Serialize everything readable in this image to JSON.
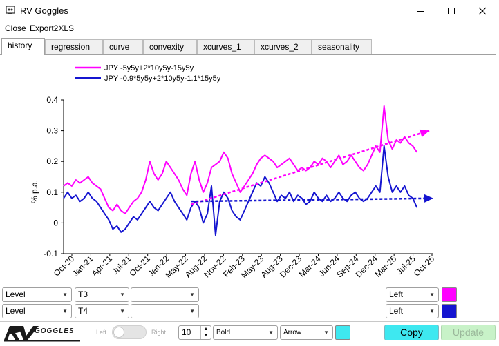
{
  "window": {
    "title": "RV Goggles"
  },
  "menu": {
    "close": "Close",
    "export": "Export2XLS"
  },
  "tabs": [
    {
      "label": "history",
      "active": true
    },
    {
      "label": "regression"
    },
    {
      "label": "curve"
    },
    {
      "label": "convexity"
    },
    {
      "label": "xcurves_1"
    },
    {
      "label": "xcurves_2"
    },
    {
      "label": "seasonality"
    }
  ],
  "chart_data": {
    "type": "line",
    "ylabel": "% p.a.",
    "ylim": [
      -0.1,
      0.4
    ],
    "yticks": [
      "0.4",
      "0.3",
      "0.2",
      "0.1",
      "0",
      "-0.1"
    ],
    "xticks": [
      "Oct-20",
      "Jan-21",
      "Apr-21",
      "Jul-21",
      "Oct-21",
      "Jan-22",
      "May-22",
      "Aug-22",
      "Nov-22",
      "Feb-23",
      "May-23",
      "Aug-23",
      "Dec-23",
      "Mar-24",
      "Jun-24",
      "Sep-24",
      "Dec-24",
      "Mar-25",
      "Jul-25",
      "Oct-25"
    ],
    "series": [
      {
        "name": "JPY -5y5y+2*10y5y-15y5y",
        "color": "#ff00ff",
        "points": [
          [
            0,
            0.12
          ],
          [
            0.5,
            0.13
          ],
          [
            1,
            0.12
          ],
          [
            1.5,
            0.14
          ],
          [
            2,
            0.13
          ],
          [
            2.5,
            0.14
          ],
          [
            3,
            0.15
          ],
          [
            3.5,
            0.13
          ],
          [
            4,
            0.12
          ],
          [
            4.5,
            0.11
          ],
          [
            5,
            0.08
          ],
          [
            5.5,
            0.05
          ],
          [
            6,
            0.04
          ],
          [
            6.5,
            0.06
          ],
          [
            7,
            0.04
          ],
          [
            7.5,
            0.03
          ],
          [
            8,
            0.05
          ],
          [
            8.5,
            0.07
          ],
          [
            9,
            0.08
          ],
          [
            9.5,
            0.1
          ],
          [
            10,
            0.14
          ],
          [
            10.5,
            0.2
          ],
          [
            11,
            0.16
          ],
          [
            11.5,
            0.14
          ],
          [
            12,
            0.16
          ],
          [
            12.5,
            0.2
          ],
          [
            13,
            0.18
          ],
          [
            13.5,
            0.16
          ],
          [
            14,
            0.14
          ],
          [
            14.5,
            0.11
          ],
          [
            15,
            0.09
          ],
          [
            15.5,
            0.16
          ],
          [
            16,
            0.2
          ],
          [
            16.5,
            0.14
          ],
          [
            17,
            0.1
          ],
          [
            17.5,
            0.13
          ],
          [
            18,
            0.18
          ],
          [
            18.5,
            0.19
          ],
          [
            19,
            0.2
          ],
          [
            19.5,
            0.23
          ],
          [
            20,
            0.21
          ],
          [
            20.5,
            0.16
          ],
          [
            21,
            0.13
          ],
          [
            21.5,
            0.1
          ],
          [
            22,
            0.12
          ],
          [
            22.5,
            0.14
          ],
          [
            23,
            0.16
          ],
          [
            23.5,
            0.19
          ],
          [
            24,
            0.21
          ],
          [
            24.5,
            0.22
          ],
          [
            25,
            0.21
          ],
          [
            25.5,
            0.2
          ],
          [
            26,
            0.18
          ],
          [
            26.5,
            0.19
          ],
          [
            27,
            0.2
          ],
          [
            27.5,
            0.21
          ],
          [
            28,
            0.19
          ],
          [
            28.5,
            0.17
          ],
          [
            29,
            0.18
          ],
          [
            29.5,
            0.17
          ],
          [
            30,
            0.18
          ],
          [
            30.5,
            0.2
          ],
          [
            31,
            0.19
          ],
          [
            31.5,
            0.21
          ],
          [
            32,
            0.2
          ],
          [
            32.5,
            0.18
          ],
          [
            33,
            0.2
          ],
          [
            33.5,
            0.22
          ],
          [
            34,
            0.19
          ],
          [
            34.5,
            0.2
          ],
          [
            35,
            0.22
          ],
          [
            35.5,
            0.2
          ],
          [
            36,
            0.18
          ],
          [
            36.5,
            0.17
          ],
          [
            37,
            0.19
          ],
          [
            37.5,
            0.22
          ],
          [
            38,
            0.25
          ],
          [
            38.5,
            0.23
          ],
          [
            39,
            0.38
          ],
          [
            39.5,
            0.27
          ],
          [
            40,
            0.24
          ],
          [
            40.5,
            0.27
          ],
          [
            41,
            0.26
          ],
          [
            41.5,
            0.28
          ],
          [
            42,
            0.26
          ],
          [
            42.5,
            0.25
          ],
          [
            43,
            0.23
          ]
        ]
      },
      {
        "name": "JPY -0.9*5y5y+2*10y5y-1.1*15y5y",
        "color": "#1515d0",
        "points": [
          [
            0,
            0.08
          ],
          [
            0.5,
            0.1
          ],
          [
            1,
            0.08
          ],
          [
            1.5,
            0.09
          ],
          [
            2,
            0.07
          ],
          [
            2.5,
            0.08
          ],
          [
            3,
            0.1
          ],
          [
            3.5,
            0.08
          ],
          [
            4,
            0.07
          ],
          [
            4.5,
            0.05
          ],
          [
            5,
            0.03
          ],
          [
            5.5,
            0.01
          ],
          [
            6,
            -0.02
          ],
          [
            6.5,
            -0.01
          ],
          [
            7,
            -0.03
          ],
          [
            7.5,
            -0.02
          ],
          [
            8,
            0.0
          ],
          [
            8.5,
            0.02
          ],
          [
            9,
            0.01
          ],
          [
            9.5,
            0.03
          ],
          [
            10,
            0.05
          ],
          [
            10.5,
            0.07
          ],
          [
            11,
            0.05
          ],
          [
            11.5,
            0.04
          ],
          [
            12,
            0.06
          ],
          [
            12.5,
            0.08
          ],
          [
            13,
            0.1
          ],
          [
            13.5,
            0.07
          ],
          [
            14,
            0.05
          ],
          [
            14.5,
            0.03
          ],
          [
            15,
            0.01
          ],
          [
            15.5,
            0.05
          ],
          [
            16,
            0.07
          ],
          [
            16.5,
            0.05
          ],
          [
            17,
            0.0
          ],
          [
            17.5,
            0.03
          ],
          [
            18,
            0.12
          ],
          [
            18.5,
            -0.04
          ],
          [
            19,
            0.07
          ],
          [
            19.5,
            0.1
          ],
          [
            20,
            0.08
          ],
          [
            20.5,
            0.04
          ],
          [
            21,
            0.02
          ],
          [
            21.5,
            0.01
          ],
          [
            22,
            0.04
          ],
          [
            22.5,
            0.07
          ],
          [
            23,
            0.1
          ],
          [
            23.5,
            0.13
          ],
          [
            24,
            0.12
          ],
          [
            24.5,
            0.15
          ],
          [
            25,
            0.13
          ],
          [
            25.5,
            0.1
          ],
          [
            26,
            0.07
          ],
          [
            26.5,
            0.09
          ],
          [
            27,
            0.08
          ],
          [
            27.5,
            0.1
          ],
          [
            28,
            0.07
          ],
          [
            28.5,
            0.09
          ],
          [
            29,
            0.08
          ],
          [
            29.5,
            0.06
          ],
          [
            30,
            0.07
          ],
          [
            30.5,
            0.1
          ],
          [
            31,
            0.08
          ],
          [
            31.5,
            0.07
          ],
          [
            32,
            0.09
          ],
          [
            32.5,
            0.07
          ],
          [
            33,
            0.08
          ],
          [
            33.5,
            0.1
          ],
          [
            34,
            0.08
          ],
          [
            34.5,
            0.07
          ],
          [
            35,
            0.09
          ],
          [
            35.5,
            0.1
          ],
          [
            36,
            0.08
          ],
          [
            36.5,
            0.07
          ],
          [
            37,
            0.08
          ],
          [
            37.5,
            0.1
          ],
          [
            38,
            0.12
          ],
          [
            38.5,
            0.1
          ],
          [
            39,
            0.25
          ],
          [
            39.5,
            0.15
          ],
          [
            40,
            0.1
          ],
          [
            40.5,
            0.12
          ],
          [
            41,
            0.1
          ],
          [
            41.5,
            0.12
          ],
          [
            42,
            0.09
          ],
          [
            42.5,
            0.08
          ],
          [
            43,
            0.05
          ]
        ]
      }
    ],
    "trendlines": [
      {
        "color": "#ff00ff",
        "from": [
          15.5,
          0.06
        ],
        "to": [
          44.5,
          0.3
        ]
      },
      {
        "color": "#1515d0",
        "from": [
          15.5,
          0.07
        ],
        "to": [
          45,
          0.08
        ]
      }
    ]
  },
  "controls": {
    "row1": {
      "level": "Level",
      "tenor": "T3",
      "empty": "",
      "align": "Left",
      "color": "#ff00ff"
    },
    "row2": {
      "level": "Level",
      "tenor": "T4",
      "empty": "",
      "align": "Left",
      "color": "#1515d0"
    }
  },
  "bottom": {
    "logo_text": "GOGGLES",
    "toggle_left": "Left",
    "toggle_right": "Right",
    "number": "10",
    "font_weight": "Bold",
    "arrow": "Arrow",
    "swatch_color": "#3ee8f0",
    "copy": "Copy",
    "update": "Update"
  }
}
